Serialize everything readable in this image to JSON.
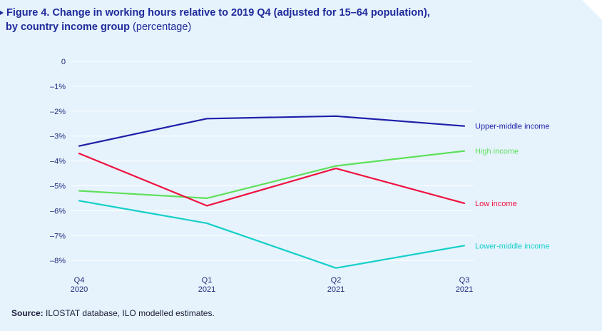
{
  "figure": {
    "title_line1": "Figure 4.  Change in working hours relative to 2019 Q4 (adjusted for 15–64 population),",
    "title_line2": "by country income group",
    "subtitle": "(percentage)"
  },
  "source": {
    "label": "Source:",
    "text": " ILOSTAT database, ILO modelled estimates."
  },
  "chart_data": {
    "type": "line",
    "title": "Change in working hours relative to 2019 Q4 (adjusted for 15–64 population), by country income group",
    "xlabel": "",
    "ylabel": "",
    "x": [
      {
        "line1": "Q4",
        "line2": "2020"
      },
      {
        "line1": "Q1",
        "line2": "2021"
      },
      {
        "line1": "Q2",
        "line2": "2021"
      },
      {
        "line1": "Q3",
        "line2": "2021"
      }
    ],
    "ylim": [
      -8,
      0
    ],
    "yticks": [
      0,
      -1,
      -2,
      -3,
      -4,
      -5,
      -6,
      -7,
      -8
    ],
    "ytick_labels": [
      "0",
      "–1%",
      "–2%",
      "–3%",
      "–4%",
      "–5%",
      "–6%",
      "–7%",
      "–8%"
    ],
    "grid": "horizontal",
    "legend": "end-of-line labels",
    "series": [
      {
        "name": "Upper-middle income",
        "color": "#1f1fa8",
        "values": [
          -3.4,
          -2.3,
          -2.2,
          -2.6
        ]
      },
      {
        "name": "High income",
        "color": "#5ee05a",
        "values": [
          -5.2,
          -5.5,
          -4.2,
          -3.6
        ]
      },
      {
        "name": "Low income",
        "color": "#ef1240",
        "values": [
          -3.7,
          -5.8,
          -4.3,
          -5.7
        ]
      },
      {
        "name": "Lower-middle income",
        "color": "#15cfc9",
        "values": [
          -5.6,
          -6.5,
          -8.3,
          -7.4
        ]
      }
    ]
  }
}
